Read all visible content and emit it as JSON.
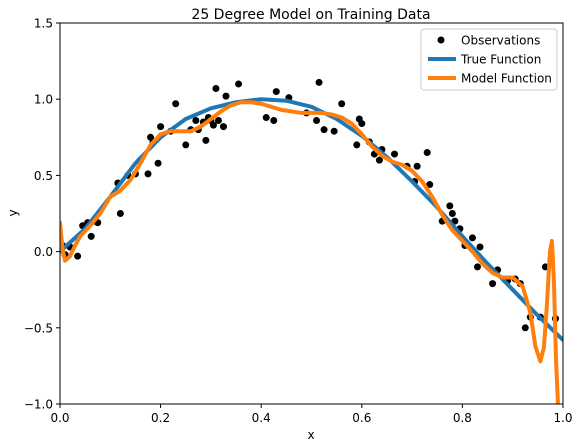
{
  "chart_data": {
    "type": "scatter",
    "title": "25 Degree Model on Training Data",
    "xlabel": "x",
    "ylabel": "y",
    "xlim": [
      0.0,
      1.0
    ],
    "ylim": [
      -1.0,
      1.5
    ],
    "xticks": [
      0.0,
      0.2,
      0.4,
      0.6,
      0.8,
      1.0
    ],
    "xtick_labels": [
      "0.0",
      "0.2",
      "0.4",
      "0.6",
      "0.8",
      "1.0"
    ],
    "yticks": [
      -1.0,
      -0.5,
      0.0,
      0.5,
      1.0,
      1.5
    ],
    "ytick_labels": [
      "−1.0",
      "−0.5",
      "0.0",
      "0.5",
      "1.0",
      "1.5"
    ],
    "grid": false,
    "legend_position": "top-right",
    "legend": [
      {
        "label": "Observations",
        "kind": "marker",
        "color": "#000000"
      },
      {
        "label": "True Function",
        "kind": "line",
        "color": "#1f77b4"
      },
      {
        "label": "Model Function",
        "kind": "line",
        "color": "#ff7f0e"
      }
    ],
    "series": [
      {
        "name": "Observations",
        "kind": "scatter",
        "color": "#000000",
        "points": [
          [
            0.005,
            0.04
          ],
          [
            0.01,
            -0.02
          ],
          [
            0.02,
            0.03
          ],
          [
            0.035,
            -0.03
          ],
          [
            0.045,
            0.17
          ],
          [
            0.055,
            0.19
          ],
          [
            0.062,
            0.1
          ],
          [
            0.068,
            0.2
          ],
          [
            0.075,
            0.19
          ],
          [
            0.115,
            0.45
          ],
          [
            0.12,
            0.25
          ],
          [
            0.135,
            0.5
          ],
          [
            0.15,
            0.51
          ],
          [
            0.16,
            0.6
          ],
          [
            0.175,
            0.51
          ],
          [
            0.18,
            0.75
          ],
          [
            0.185,
            0.72
          ],
          [
            0.195,
            0.58
          ],
          [
            0.2,
            0.82
          ],
          [
            0.22,
            0.79
          ],
          [
            0.23,
            0.97
          ],
          [
            0.25,
            0.7
          ],
          [
            0.26,
            0.8
          ],
          [
            0.27,
            0.86
          ],
          [
            0.275,
            0.8
          ],
          [
            0.285,
            0.85
          ],
          [
            0.29,
            0.73
          ],
          [
            0.295,
            0.88
          ],
          [
            0.3,
            0.86
          ],
          [
            0.305,
            0.83
          ],
          [
            0.31,
            1.07
          ],
          [
            0.315,
            0.86
          ],
          [
            0.325,
            0.82
          ],
          [
            0.33,
            1.02
          ],
          [
            0.355,
            1.1
          ],
          [
            0.41,
            0.88
          ],
          [
            0.425,
            0.86
          ],
          [
            0.43,
            1.05
          ],
          [
            0.455,
            1.01
          ],
          [
            0.49,
            0.91
          ],
          [
            0.51,
            0.86
          ],
          [
            0.515,
            1.11
          ],
          [
            0.525,
            0.8
          ],
          [
            0.545,
            0.79
          ],
          [
            0.56,
            0.97
          ],
          [
            0.59,
            0.7
          ],
          [
            0.595,
            0.87
          ],
          [
            0.6,
            0.84
          ],
          [
            0.615,
            0.72
          ],
          [
            0.625,
            0.64
          ],
          [
            0.635,
            0.6
          ],
          [
            0.64,
            0.67
          ],
          [
            0.665,
            0.64
          ],
          [
            0.69,
            0.56
          ],
          [
            0.705,
            0.46
          ],
          [
            0.71,
            0.56
          ],
          [
            0.73,
            0.65
          ],
          [
            0.735,
            0.44
          ],
          [
            0.76,
            0.2
          ],
          [
            0.775,
            0.3
          ],
          [
            0.78,
            0.25
          ],
          [
            0.785,
            0.2
          ],
          [
            0.795,
            0.15
          ],
          [
            0.805,
            0.04
          ],
          [
            0.82,
            0.09
          ],
          [
            0.83,
            -0.1
          ],
          [
            0.835,
            0.03
          ],
          [
            0.86,
            -0.21
          ],
          [
            0.87,
            -0.12
          ],
          [
            0.89,
            -0.19
          ],
          [
            0.905,
            -0.18
          ],
          [
            0.915,
            -0.21
          ],
          [
            0.925,
            -0.5
          ],
          [
            0.935,
            -0.43
          ],
          [
            0.955,
            -0.43
          ],
          [
            0.965,
            -0.1
          ],
          [
            0.985,
            -0.44
          ]
        ]
      },
      {
        "name": "True Function",
        "kind": "line",
        "color": "#1f77b4",
        "points": [
          [
            0.0,
            0.0
          ],
          [
            0.05,
            0.15
          ],
          [
            0.1,
            0.36
          ],
          [
            0.15,
            0.58
          ],
          [
            0.2,
            0.75
          ],
          [
            0.25,
            0.87
          ],
          [
            0.3,
            0.94
          ],
          [
            0.35,
            0.98
          ],
          [
            0.4,
            1.0
          ],
          [
            0.45,
            0.99
          ],
          [
            0.5,
            0.95
          ],
          [
            0.55,
            0.87
          ],
          [
            0.6,
            0.76
          ],
          [
            0.65,
            0.62
          ],
          [
            0.7,
            0.46
          ],
          [
            0.75,
            0.29
          ],
          [
            0.8,
            0.1
          ],
          [
            0.85,
            -0.08
          ],
          [
            0.9,
            -0.25
          ],
          [
            0.95,
            -0.42
          ],
          [
            1.0,
            -0.58
          ]
        ]
      },
      {
        "name": "Model Function",
        "kind": "line",
        "color": "#ff7f0e",
        "points": [
          [
            0.0,
            0.19
          ],
          [
            0.005,
            0.02
          ],
          [
            0.01,
            -0.06
          ],
          [
            0.02,
            -0.03
          ],
          [
            0.03,
            0.04
          ],
          [
            0.04,
            0.1
          ],
          [
            0.06,
            0.17
          ],
          [
            0.08,
            0.25
          ],
          [
            0.1,
            0.36
          ],
          [
            0.12,
            0.4
          ],
          [
            0.14,
            0.47
          ],
          [
            0.16,
            0.58
          ],
          [
            0.18,
            0.7
          ],
          [
            0.2,
            0.77
          ],
          [
            0.22,
            0.79
          ],
          [
            0.24,
            0.79
          ],
          [
            0.26,
            0.79
          ],
          [
            0.28,
            0.82
          ],
          [
            0.3,
            0.87
          ],
          [
            0.32,
            0.92
          ],
          [
            0.34,
            0.96
          ],
          [
            0.36,
            0.98
          ],
          [
            0.38,
            0.98
          ],
          [
            0.4,
            0.97
          ],
          [
            0.42,
            0.95
          ],
          [
            0.44,
            0.93
          ],
          [
            0.46,
            0.92
          ],
          [
            0.48,
            0.91
          ],
          [
            0.5,
            0.91
          ],
          [
            0.52,
            0.91
          ],
          [
            0.54,
            0.9
          ],
          [
            0.56,
            0.88
          ],
          [
            0.58,
            0.84
          ],
          [
            0.6,
            0.77
          ],
          [
            0.62,
            0.69
          ],
          [
            0.64,
            0.63
          ],
          [
            0.66,
            0.59
          ],
          [
            0.68,
            0.57
          ],
          [
            0.7,
            0.53
          ],
          [
            0.72,
            0.46
          ],
          [
            0.74,
            0.36
          ],
          [
            0.76,
            0.24
          ],
          [
            0.78,
            0.14
          ],
          [
            0.8,
            0.07
          ],
          [
            0.82,
            0.0
          ],
          [
            0.84,
            -0.08
          ],
          [
            0.86,
            -0.14
          ],
          [
            0.88,
            -0.17
          ],
          [
            0.9,
            -0.17
          ],
          [
            0.92,
            -0.23
          ],
          [
            0.935,
            -0.4
          ],
          [
            0.945,
            -0.62
          ],
          [
            0.955,
            -0.72
          ],
          [
            0.962,
            -0.63
          ],
          [
            0.968,
            -0.35
          ],
          [
            0.974,
            0.0
          ],
          [
            0.978,
            0.07
          ],
          [
            0.982,
            -0.2
          ],
          [
            0.986,
            -0.7
          ],
          [
            0.99,
            -1.0
          ]
        ]
      }
    ]
  }
}
